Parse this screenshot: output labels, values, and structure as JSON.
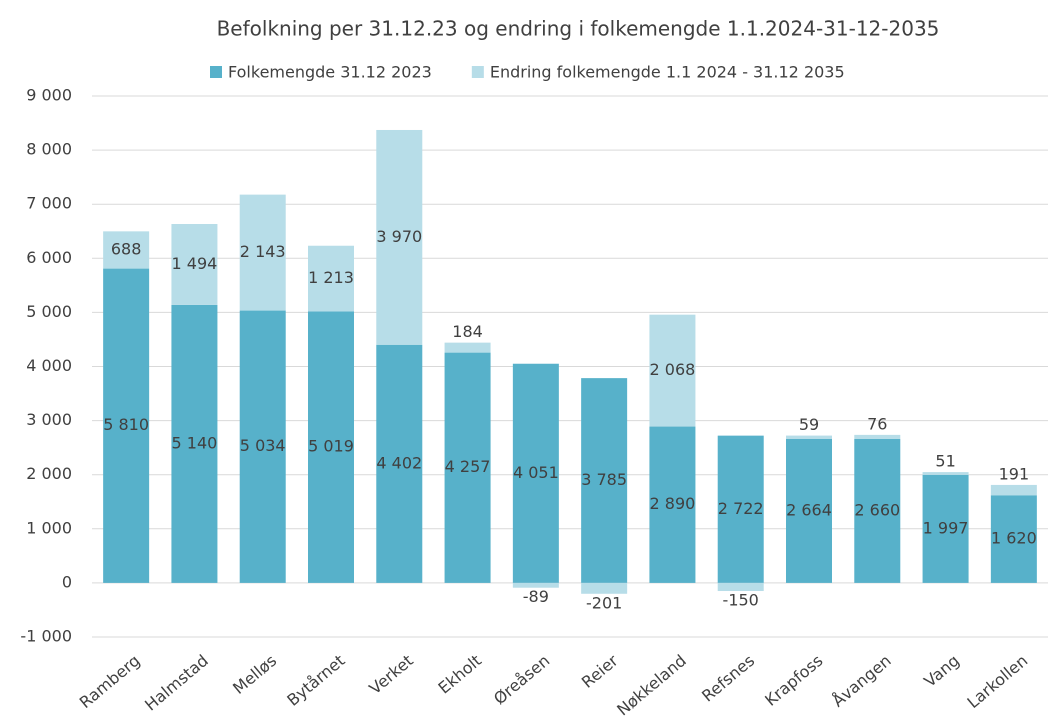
{
  "chart_data": {
    "type": "stacked_bar",
    "title": "Befolkning per 31.12.23 og endring i folkemengde 1.1.2024-31-12-2035",
    "categories": [
      "Ramberg",
      "Halmstad",
      "Melløs",
      "Bytårnet",
      "Verket",
      "Ekholt",
      "Øreåsen",
      "Reier",
      "Nøkkeland",
      "Refsnes",
      "Krapfoss",
      "Åvangen",
      "Vang",
      "Larkollen"
    ],
    "series": [
      {
        "name": "Folkemengde 31.12 2023",
        "color": "#57b1ca",
        "values": [
          5810,
          5140,
          5034,
          5019,
          4402,
          4257,
          4051,
          3785,
          2890,
          2722,
          2664,
          2660,
          1997,
          1620
        ],
        "value_labels": [
          "5 810",
          "5 140",
          "5 034",
          "5 019",
          "4 402",
          "4 257",
          "4 051",
          "3 785",
          "2 890",
          "2 722",
          "2 664",
          "2 660",
          "1 997",
          "1 620"
        ]
      },
      {
        "name": "Endring folkemengde 1.1 2024 - 31.12 2035",
        "color": "#b7dde8",
        "values": [
          688,
          1494,
          2143,
          1213,
          3970,
          184,
          -89,
          -201,
          2068,
          -150,
          59,
          76,
          51,
          191
        ],
        "value_labels": [
          "688",
          "1 494",
          "2 143",
          "1 213",
          "3 970",
          "184",
          "-89",
          "-201",
          "2 068",
          "-150",
          "59",
          "76",
          "51",
          "191"
        ]
      }
    ],
    "ylim": [
      -1000,
      9000
    ],
    "yticks": [
      {
        "value": -1000,
        "label": "-1 000"
      },
      0,
      {
        "value": 1000,
        "label": "1 000"
      },
      {
        "value": 2000,
        "label": "2 000"
      },
      {
        "value": 3000,
        "label": "3 000"
      },
      {
        "value": 4000,
        "label": "4 000"
      },
      {
        "value": 5000,
        "label": "5 000"
      },
      {
        "value": 6000,
        "label": "6 000"
      },
      {
        "value": 7000,
        "label": "7 000"
      },
      {
        "value": 8000,
        "label": "8 000"
      },
      {
        "value": 9000,
        "label": "9 000"
      }
    ],
    "grid": true,
    "legend": "top"
  }
}
